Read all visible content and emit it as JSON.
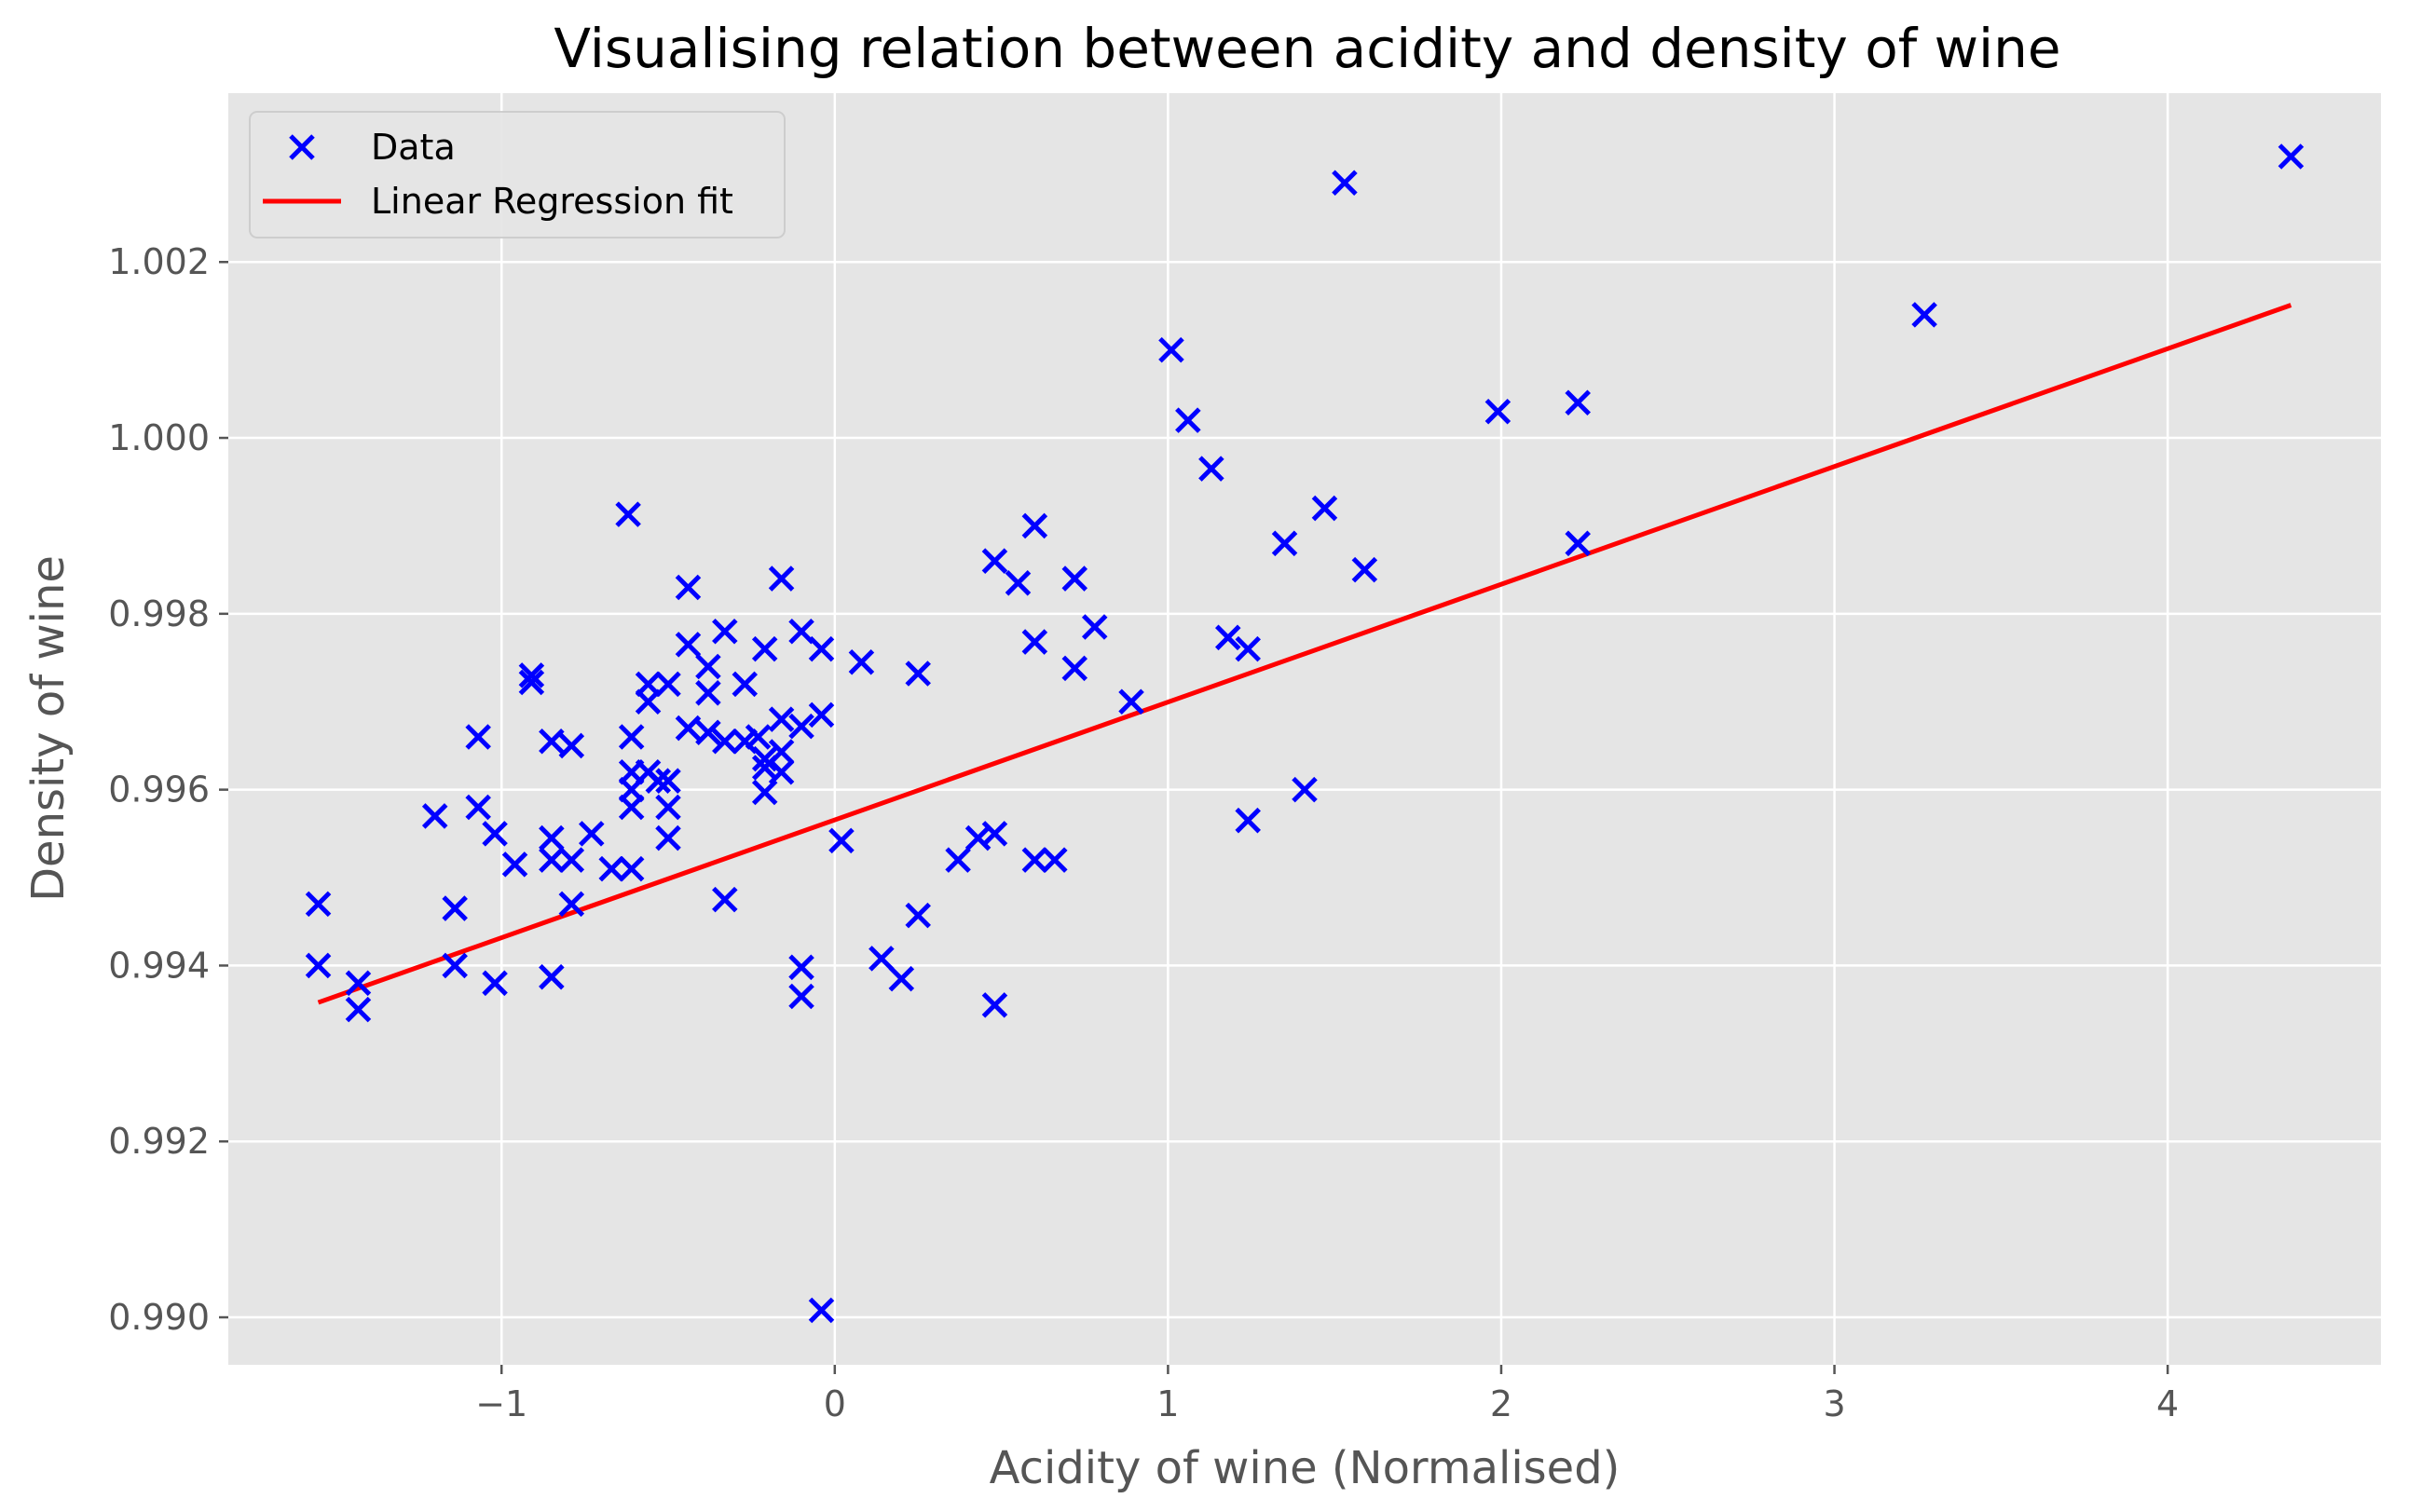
{
  "chart_data": {
    "type": "scatter",
    "title": "Visualising relation between acidity and density of wine",
    "xlabel": "Acidity of wine (Normalised)",
    "ylabel": "Density of wine",
    "xlim": [
      -1.82,
      4.64
    ],
    "ylim": [
      0.98946,
      1.00392
    ],
    "x_ticks": [
      -1,
      0,
      1,
      2,
      3,
      4
    ],
    "x_tick_labels": [
      "−1",
      "0",
      "1",
      "2",
      "3",
      "4"
    ],
    "y_ticks": [
      0.99,
      0.992,
      0.994,
      0.996,
      0.998,
      1.0,
      1.002
    ],
    "y_tick_labels": [
      "0.990",
      "0.992",
      "0.994",
      "0.996",
      "0.998",
      "1.000",
      "1.002"
    ],
    "grid": true,
    "background": "#e5e5e5",
    "legend_position": "top-left",
    "series": [
      {
        "name": "Data",
        "kind": "scatter",
        "marker": "x",
        "color": "#0000ff",
        "points": [
          [
            -1.55,
            0.9947
          ],
          [
            -1.55,
            0.994
          ],
          [
            -1.43,
            0.9938
          ],
          [
            -1.43,
            0.9935
          ],
          [
            -1.14,
            0.99465
          ],
          [
            -1.14,
            0.994
          ],
          [
            -1.2,
            0.9957
          ],
          [
            -1.07,
            0.9966
          ],
          [
            -1.07,
            0.9958
          ],
          [
            -1.02,
            0.9955
          ],
          [
            -1.02,
            0.9938
          ],
          [
            -0.96,
            0.99515
          ],
          [
            -0.91,
            0.9973
          ],
          [
            -0.91,
            0.99722
          ],
          [
            -0.85,
            0.99655
          ],
          [
            -0.85,
            0.99545
          ],
          [
            -0.85,
            0.9952
          ],
          [
            -0.85,
            0.99387
          ],
          [
            -0.79,
            0.9965
          ],
          [
            -0.79,
            0.9952
          ],
          [
            -0.79,
            0.9947
          ],
          [
            -0.73,
            0.9955
          ],
          [
            -0.67,
            0.9951
          ],
          [
            -0.62,
            0.99913
          ],
          [
            -0.61,
            0.9966
          ],
          [
            -0.61,
            0.9962
          ],
          [
            -0.61,
            0.996
          ],
          [
            -0.61,
            0.9958
          ],
          [
            -0.61,
            0.9951
          ],
          [
            -0.56,
            0.9972
          ],
          [
            -0.56,
            0.997
          ],
          [
            -0.56,
            0.9962
          ],
          [
            -0.53,
            0.9961
          ],
          [
            -0.5,
            0.9972
          ],
          [
            -0.5,
            0.9961
          ],
          [
            -0.5,
            0.9958
          ],
          [
            -0.5,
            0.99545
          ],
          [
            -0.44,
            0.9983
          ],
          [
            -0.44,
            0.99765
          ],
          [
            -0.44,
            0.9967
          ],
          [
            -0.38,
            0.9974
          ],
          [
            -0.38,
            0.9971
          ],
          [
            -0.38,
            0.99665
          ],
          [
            -0.33,
            0.9978
          ],
          [
            -0.33,
            0.99655
          ],
          [
            -0.33,
            0.99475
          ],
          [
            -0.27,
            0.9972
          ],
          [
            -0.27,
            0.99655
          ],
          [
            -0.23,
            0.9966
          ],
          [
            -0.21,
            0.9976
          ],
          [
            -0.21,
            0.99635
          ],
          [
            -0.21,
            0.99625
          ],
          [
            -0.21,
            0.99597
          ],
          [
            -0.16,
            0.9984
          ],
          [
            -0.16,
            0.9968
          ],
          [
            -0.16,
            0.99643
          ],
          [
            -0.16,
            0.9962
          ],
          [
            -0.1,
            0.9978
          ],
          [
            -0.1,
            0.99672
          ],
          [
            -0.1,
            0.99398
          ],
          [
            -0.1,
            0.99365
          ],
          [
            -0.04,
            0.9976
          ],
          [
            -0.04,
            0.99685
          ],
          [
            -0.04,
            0.99008
          ],
          [
            0.02,
            0.99542
          ],
          [
            0.08,
            0.99745
          ],
          [
            0.14,
            0.99408
          ],
          [
            0.2,
            0.99385
          ],
          [
            0.25,
            0.99732
          ],
          [
            0.25,
            0.99457
          ],
          [
            0.37,
            0.9952
          ],
          [
            0.43,
            0.99545
          ],
          [
            0.48,
            0.9986
          ],
          [
            0.48,
            0.9955
          ],
          [
            0.48,
            0.99355
          ],
          [
            0.55,
            0.99835
          ],
          [
            0.6,
            0.999
          ],
          [
            0.6,
            0.99768
          ],
          [
            0.6,
            0.9952
          ],
          [
            0.66,
            0.9952
          ],
          [
            0.72,
            0.9984
          ],
          [
            0.72,
            0.99738
          ],
          [
            0.78,
            0.99785
          ],
          [
            0.89,
            0.997
          ],
          [
            1.01,
            1.001
          ],
          [
            1.06,
            1.0002
          ],
          [
            1.13,
            0.99965
          ],
          [
            1.18,
            0.99773
          ],
          [
            1.24,
            0.9976
          ],
          [
            1.24,
            0.99565
          ],
          [
            1.35,
            0.9988
          ],
          [
            1.41,
            0.996
          ],
          [
            1.47,
            0.9992
          ],
          [
            1.53,
            1.0029
          ],
          [
            1.59,
            0.9985
          ],
          [
            1.99,
            1.0003
          ],
          [
            2.23,
            1.0004
          ],
          [
            2.23,
            0.9988
          ],
          [
            3.27,
            1.0014
          ],
          [
            4.37,
            1.0032
          ]
        ]
      },
      {
        "name": "Linear Regression fit",
        "kind": "line",
        "color": "#ff0000",
        "points": [
          [
            -1.55,
            0.99358
          ],
          [
            4.37,
            1.00151
          ]
        ]
      }
    ]
  }
}
